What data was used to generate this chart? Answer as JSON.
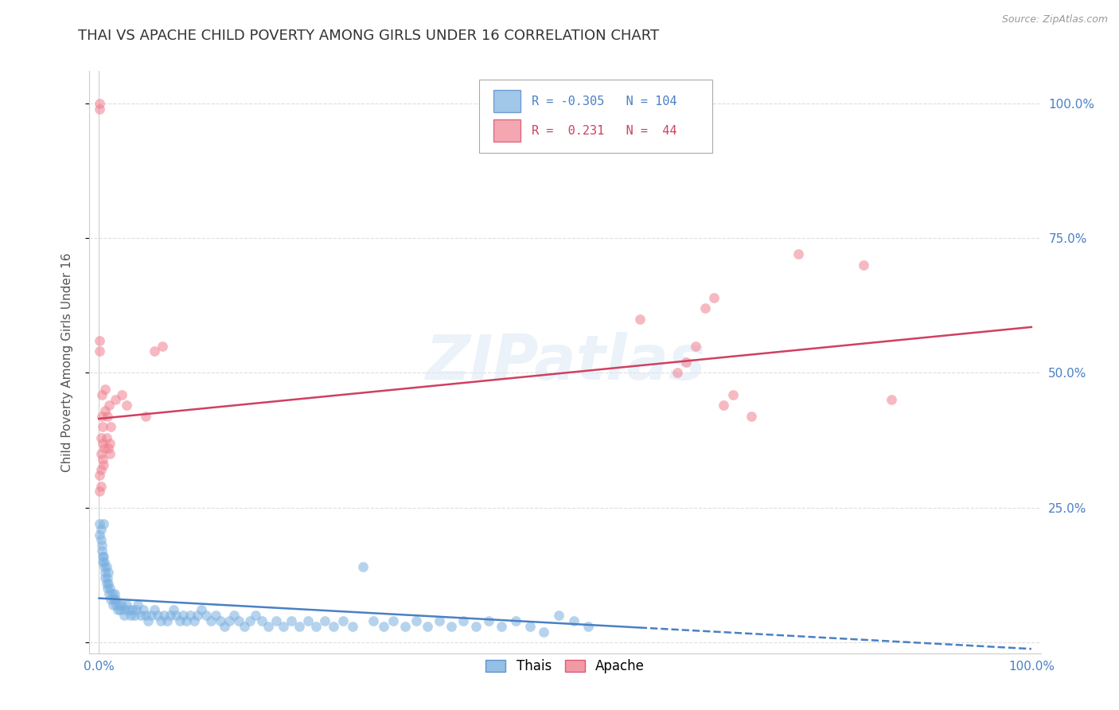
{
  "title": "THAI VS APACHE CHILD POVERTY AMONG GIRLS UNDER 16 CORRELATION CHART",
  "source": "Source: ZipAtlas.com",
  "ylabel": "Child Poverty Among Girls Under 16",
  "watermark": "ZIPatlas",
  "legend_blue_label": "R = -0.305   N = 104",
  "legend_pink_label": "R =  0.231   N =  44",
  "bottom_legend": [
    "Thais",
    "Apache"
  ],
  "x_ticks": [
    0.0,
    1.0
  ],
  "x_tick_labels": [
    "0.0%",
    "100.0%"
  ],
  "y_ticks": [
    0.0,
    0.25,
    0.5,
    0.75,
    1.0
  ],
  "y_tick_labels_right": [
    "",
    "25.0%",
    "50.0%",
    "75.0%",
    "100.0%"
  ],
  "blue_scatter": [
    [
      0.001,
      0.22
    ],
    [
      0.001,
      0.2
    ],
    [
      0.002,
      0.21
    ],
    [
      0.002,
      0.19
    ],
    [
      0.003,
      0.18
    ],
    [
      0.003,
      0.17
    ],
    [
      0.004,
      0.16
    ],
    [
      0.004,
      0.15
    ],
    [
      0.005,
      0.22
    ],
    [
      0.005,
      0.16
    ],
    [
      0.006,
      0.15
    ],
    [
      0.006,
      0.14
    ],
    [
      0.007,
      0.13
    ],
    [
      0.007,
      0.12
    ],
    [
      0.008,
      0.14
    ],
    [
      0.008,
      0.11
    ],
    [
      0.009,
      0.12
    ],
    [
      0.009,
      0.1
    ],
    [
      0.01,
      0.13
    ],
    [
      0.01,
      0.11
    ],
    [
      0.011,
      0.09
    ],
    [
      0.012,
      0.1
    ],
    [
      0.013,
      0.08
    ],
    [
      0.014,
      0.09
    ],
    [
      0.015,
      0.07
    ],
    [
      0.016,
      0.08
    ],
    [
      0.017,
      0.09
    ],
    [
      0.018,
      0.08
    ],
    [
      0.019,
      0.07
    ],
    [
      0.02,
      0.06
    ],
    [
      0.022,
      0.07
    ],
    [
      0.023,
      0.06
    ],
    [
      0.025,
      0.07
    ],
    [
      0.027,
      0.05
    ],
    [
      0.028,
      0.06
    ],
    [
      0.03,
      0.07
    ],
    [
      0.032,
      0.06
    ],
    [
      0.034,
      0.05
    ],
    [
      0.036,
      0.06
    ],
    [
      0.038,
      0.05
    ],
    [
      0.04,
      0.06
    ],
    [
      0.042,
      0.07
    ],
    [
      0.045,
      0.05
    ],
    [
      0.048,
      0.06
    ],
    [
      0.05,
      0.05
    ],
    [
      0.053,
      0.04
    ],
    [
      0.056,
      0.05
    ],
    [
      0.06,
      0.06
    ],
    [
      0.063,
      0.05
    ],
    [
      0.066,
      0.04
    ],
    [
      0.07,
      0.05
    ],
    [
      0.073,
      0.04
    ],
    [
      0.077,
      0.05
    ],
    [
      0.08,
      0.06
    ],
    [
      0.083,
      0.05
    ],
    [
      0.087,
      0.04
    ],
    [
      0.09,
      0.05
    ],
    [
      0.094,
      0.04
    ],
    [
      0.098,
      0.05
    ],
    [
      0.102,
      0.04
    ],
    [
      0.106,
      0.05
    ],
    [
      0.11,
      0.06
    ],
    [
      0.115,
      0.05
    ],
    [
      0.12,
      0.04
    ],
    [
      0.125,
      0.05
    ],
    [
      0.13,
      0.04
    ],
    [
      0.135,
      0.03
    ],
    [
      0.14,
      0.04
    ],
    [
      0.145,
      0.05
    ],
    [
      0.15,
      0.04
    ],
    [
      0.156,
      0.03
    ],
    [
      0.162,
      0.04
    ],
    [
      0.168,
      0.05
    ],
    [
      0.175,
      0.04
    ],
    [
      0.182,
      0.03
    ],
    [
      0.19,
      0.04
    ],
    [
      0.198,
      0.03
    ],
    [
      0.206,
      0.04
    ],
    [
      0.215,
      0.03
    ],
    [
      0.224,
      0.04
    ],
    [
      0.233,
      0.03
    ],
    [
      0.242,
      0.04
    ],
    [
      0.252,
      0.03
    ],
    [
      0.262,
      0.04
    ],
    [
      0.272,
      0.03
    ],
    [
      0.283,
      0.14
    ],
    [
      0.294,
      0.04
    ],
    [
      0.305,
      0.03
    ],
    [
      0.316,
      0.04
    ],
    [
      0.328,
      0.03
    ],
    [
      0.34,
      0.04
    ],
    [
      0.352,
      0.03
    ],
    [
      0.365,
      0.04
    ],
    [
      0.378,
      0.03
    ],
    [
      0.391,
      0.04
    ],
    [
      0.404,
      0.03
    ],
    [
      0.418,
      0.04
    ],
    [
      0.432,
      0.03
    ],
    [
      0.447,
      0.04
    ],
    [
      0.462,
      0.03
    ],
    [
      0.477,
      0.02
    ],
    [
      0.493,
      0.05
    ],
    [
      0.509,
      0.04
    ],
    [
      0.525,
      0.03
    ]
  ],
  "pink_scatter": [
    [
      0.001,
      0.99
    ],
    [
      0.001,
      1.0
    ],
    [
      0.001,
      0.54
    ],
    [
      0.001,
      0.56
    ],
    [
      0.001,
      0.31
    ],
    [
      0.001,
      0.28
    ],
    [
      0.002,
      0.35
    ],
    [
      0.002,
      0.38
    ],
    [
      0.002,
      0.32
    ],
    [
      0.002,
      0.29
    ],
    [
      0.003,
      0.42
    ],
    [
      0.003,
      0.46
    ],
    [
      0.004,
      0.34
    ],
    [
      0.004,
      0.37
    ],
    [
      0.004,
      0.4
    ],
    [
      0.005,
      0.33
    ],
    [
      0.006,
      0.36
    ],
    [
      0.007,
      0.43
    ],
    [
      0.007,
      0.47
    ],
    [
      0.008,
      0.38
    ],
    [
      0.009,
      0.42
    ],
    [
      0.01,
      0.36
    ],
    [
      0.011,
      0.44
    ],
    [
      0.012,
      0.37
    ],
    [
      0.012,
      0.35
    ],
    [
      0.013,
      0.4
    ],
    [
      0.018,
      0.45
    ],
    [
      0.025,
      0.46
    ],
    [
      0.03,
      0.44
    ],
    [
      0.05,
      0.42
    ],
    [
      0.06,
      0.54
    ],
    [
      0.068,
      0.55
    ],
    [
      0.58,
      0.6
    ],
    [
      0.62,
      0.5
    ],
    [
      0.63,
      0.52
    ],
    [
      0.64,
      0.55
    ],
    [
      0.65,
      0.62
    ],
    [
      0.66,
      0.64
    ],
    [
      0.67,
      0.44
    ],
    [
      0.68,
      0.46
    ],
    [
      0.7,
      0.42
    ],
    [
      0.75,
      0.72
    ],
    [
      0.82,
      0.7
    ],
    [
      0.85,
      0.45
    ]
  ],
  "blue_line_x0": 0.0,
  "blue_line_x1": 1.0,
  "blue_line_y0": 0.082,
  "blue_line_y1": -0.012,
  "blue_line_solid_end": 0.58,
  "pink_line_x0": 0.0,
  "pink_line_x1": 1.0,
  "pink_line_y0": 0.415,
  "pink_line_y1": 0.585,
  "plot_bg": "#ffffff",
  "scatter_alpha": 0.55,
  "scatter_size": 85,
  "grid_color": "#d0d0d0",
  "title_fontsize": 13,
  "axis_label_fontsize": 11,
  "tick_fontsize": 11,
  "blue_color": "#7ab0e0",
  "pink_color": "#f08090",
  "blue_line_color": "#4a80c4",
  "pink_line_color": "#d04060",
  "tick_color": "#4a80c4"
}
